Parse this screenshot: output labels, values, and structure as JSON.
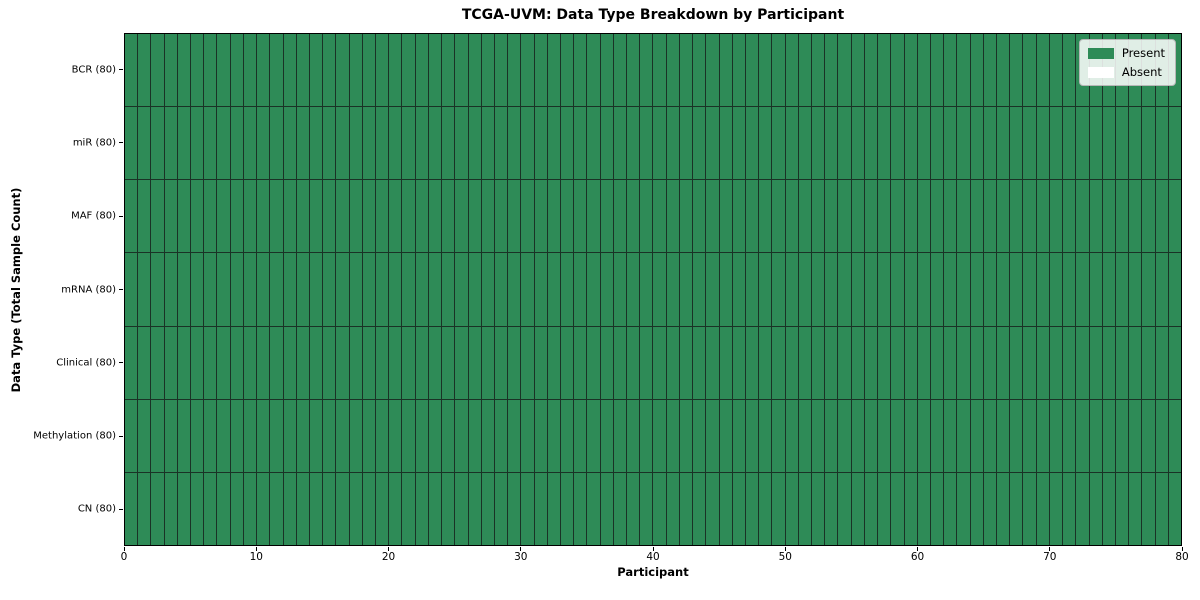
{
  "chart_data": {
    "type": "heatmap",
    "title": "TCGA-UVM: Data Type Breakdown by Participant",
    "xlabel": "Participant",
    "ylabel": "Data Type (Total Sample Count)",
    "participants": 80,
    "xlim": [
      0,
      80
    ],
    "x_ticks": [
      0,
      10,
      20,
      30,
      40,
      50,
      60,
      70,
      80
    ],
    "rows": [
      {
        "label": "BCR (80)",
        "present_count": 80,
        "absent_count": 0
      },
      {
        "label": "miR (80)",
        "present_count": 80,
        "absent_count": 0
      },
      {
        "label": "MAF (80)",
        "present_count": 80,
        "absent_count": 0
      },
      {
        "label": "mRNA (80)",
        "present_count": 80,
        "absent_count": 0
      },
      {
        "label": "Clinical (80)",
        "present_count": 80,
        "absent_count": 0
      },
      {
        "label": "Methylation (80)",
        "present_count": 80,
        "absent_count": 0
      },
      {
        "label": "CN (80)",
        "present_count": 80,
        "absent_count": 0
      }
    ],
    "all_cells_state": "Present",
    "legend": {
      "position": "upper right",
      "entries": [
        {
          "label": "Present",
          "color": "#2e8b57"
        },
        {
          "label": "Absent",
          "color": "#ffffff"
        }
      ]
    },
    "colors": {
      "present": "#2e8b57",
      "absent": "#ffffff",
      "cell_edge": "#1a3326",
      "spine": "#000000",
      "background": "#ffffff"
    },
    "grid": true
  }
}
